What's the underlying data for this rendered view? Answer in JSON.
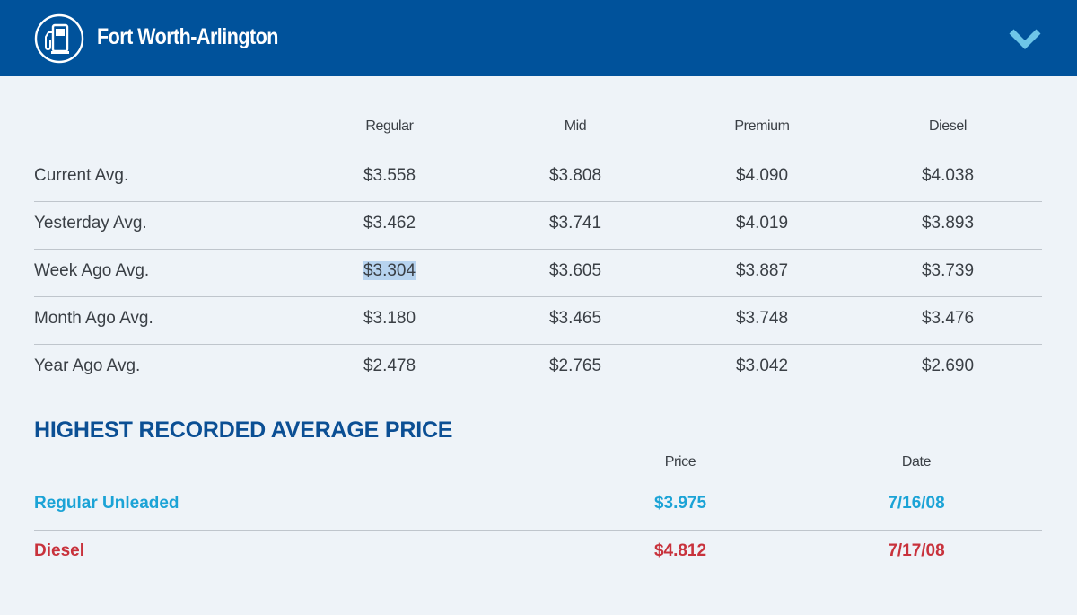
{
  "header": {
    "region": "Fort Worth-Arlington",
    "icon": "gas-pump-icon",
    "toggle_icon": "chevron-down-icon",
    "background_color": "#00529b",
    "accent_color": "#6ec6e8"
  },
  "averages": {
    "columns": [
      "Regular",
      "Mid",
      "Premium",
      "Diesel"
    ],
    "rows": [
      {
        "label": "Current Avg.",
        "values": [
          "$3.558",
          "$3.808",
          "$4.090",
          "$4.038"
        ]
      },
      {
        "label": "Yesterday Avg.",
        "values": [
          "$3.462",
          "$3.741",
          "$4.019",
          "$3.893"
        ]
      },
      {
        "label": "Week Ago Avg.",
        "values": [
          "$3.304",
          "$3.605",
          "$3.887",
          "$3.739"
        ]
      },
      {
        "label": "Month Ago Avg.",
        "values": [
          "$3.180",
          "$3.465",
          "$3.748",
          "$3.476"
        ]
      },
      {
        "label": "Year Ago Avg.",
        "values": [
          "$2.478",
          "$2.765",
          "$3.042",
          "$2.690"
        ]
      }
    ]
  },
  "highest": {
    "heading": "HIGHEST RECORDED AVERAGE PRICE",
    "columns": [
      "Price",
      "Date"
    ],
    "rows": [
      {
        "label": "Regular Unleaded",
        "price": "$3.975",
        "date": "7/16/08",
        "color": "#1ba3d6"
      },
      {
        "label": "Diesel",
        "price": "$4.812",
        "date": "7/17/08",
        "color": "#c8323c"
      }
    ]
  }
}
